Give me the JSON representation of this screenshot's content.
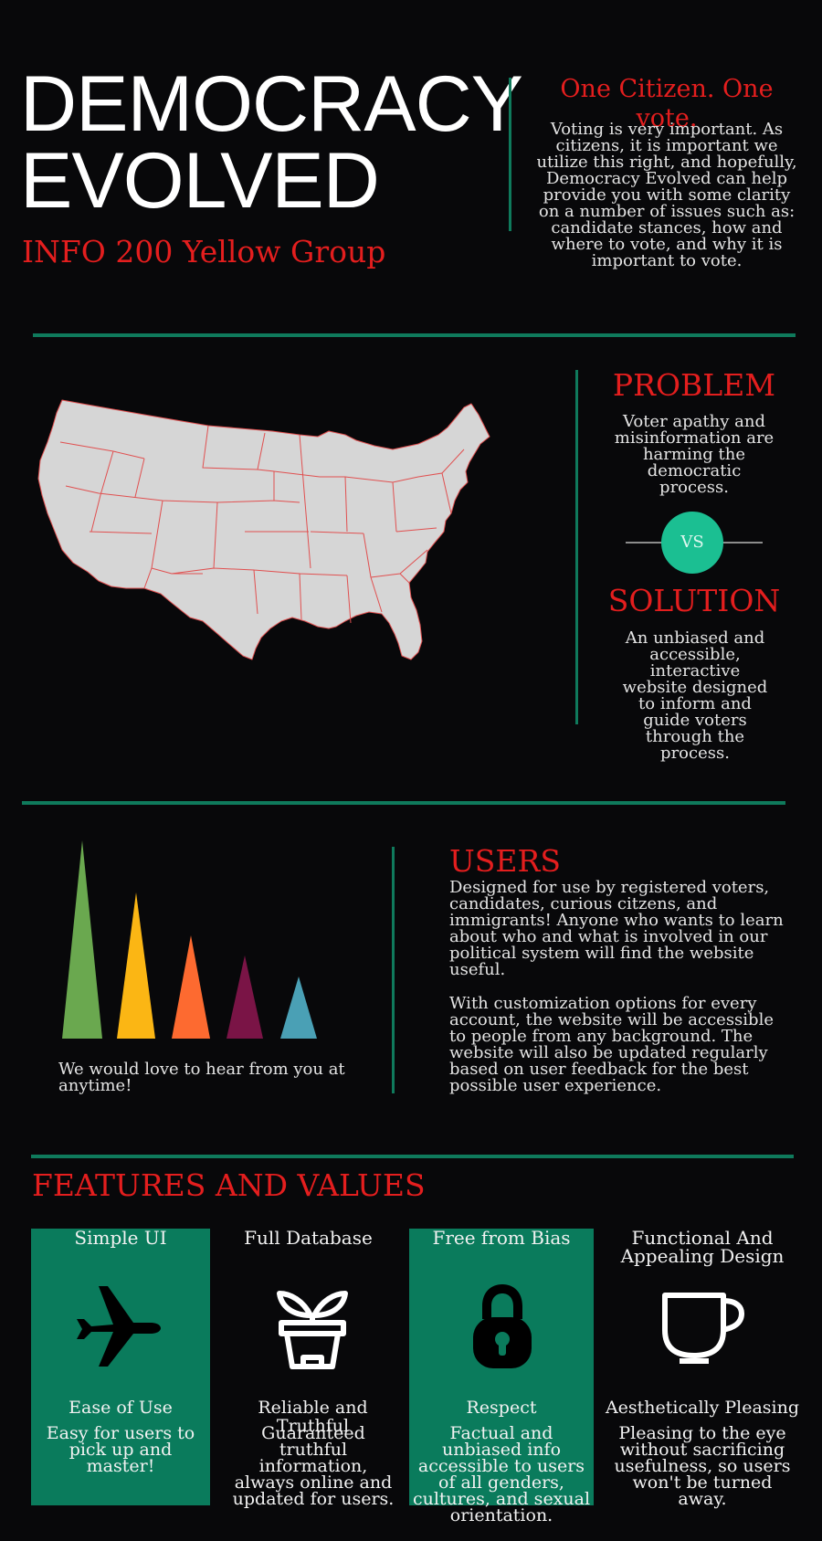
{
  "header": {
    "title_line1": "DEMOCRACY",
    "title_line2": "EVOLVED",
    "subtitle": "INFO 200 Yellow Group",
    "tagline": "One Citizen. One vote.",
    "intro": "Voting is very important. As citizens, it is important we utilize this right, and hopefully, Democracy Evolved can help provide you with some clarity on a number of issues such as: candidate stances, how and where to vote, and why it is important to vote."
  },
  "problem_solution": {
    "problem_heading": "PROBLEM",
    "problem_text": "Voter apathy and misinformation are harming the democratic process.",
    "vs_label": "VS",
    "solution_heading": "SOLUTION",
    "solution_text": "An unbiased and accessible, interactive website designed to inform and guide voters through the process."
  },
  "users": {
    "heading": "USERS",
    "paragraph1": "Designed for use by registered voters, candidates, curious citzens, and immigrants! Anyone who wants to learn about who and what is involved in our political system will find the website useful.",
    "paragraph2": "With customization options for every account, the website will be accessible to people from any background. The website will also be updated regularly based on user feedback for the best possible user experience.",
    "feedback_note": "We would love to hear from you at anytime!",
    "triangle_colors": [
      "#6aa84f",
      "#fbb614",
      "#fd6a30",
      "#7a1446",
      "#4aa0b5"
    ],
    "triangle_levels": [
      1.0,
      0.74,
      0.52,
      0.42,
      0.31
    ]
  },
  "features": {
    "heading": "FEATURES AND VALUES",
    "items": [
      {
        "title": "Simple UI",
        "icon": "airplane-icon",
        "value": "Ease of Use",
        "description": "Easy for users to pick up and master!"
      },
      {
        "title": "Full Database",
        "icon": "sprout-pot-icon",
        "value": "Reliable and Truthful",
        "description": "Guaranteed truthful information, always online and updated for users."
      },
      {
        "title": "Free from Bias",
        "icon": "padlock-icon",
        "value": "Respect",
        "description": "Factual and unbiased info accessible to users of all genders, cultures, and sexual orientation."
      },
      {
        "title": "Functional And Appealing Design",
        "icon": "coffee-cup-icon",
        "value": "Aesthetically Pleasing",
        "description": "Pleasing to the eye without sacrificing usefulness, so users won't be turned away."
      }
    ]
  },
  "colors": {
    "background": "#08080a",
    "accent_red": "#e41e1e",
    "accent_teal": "#0f7a5c",
    "vs_circle": "#1bbf92",
    "feature_green": "#0a7b5c",
    "map_fill": "#d6d6d6",
    "map_stroke": "#e05050"
  }
}
